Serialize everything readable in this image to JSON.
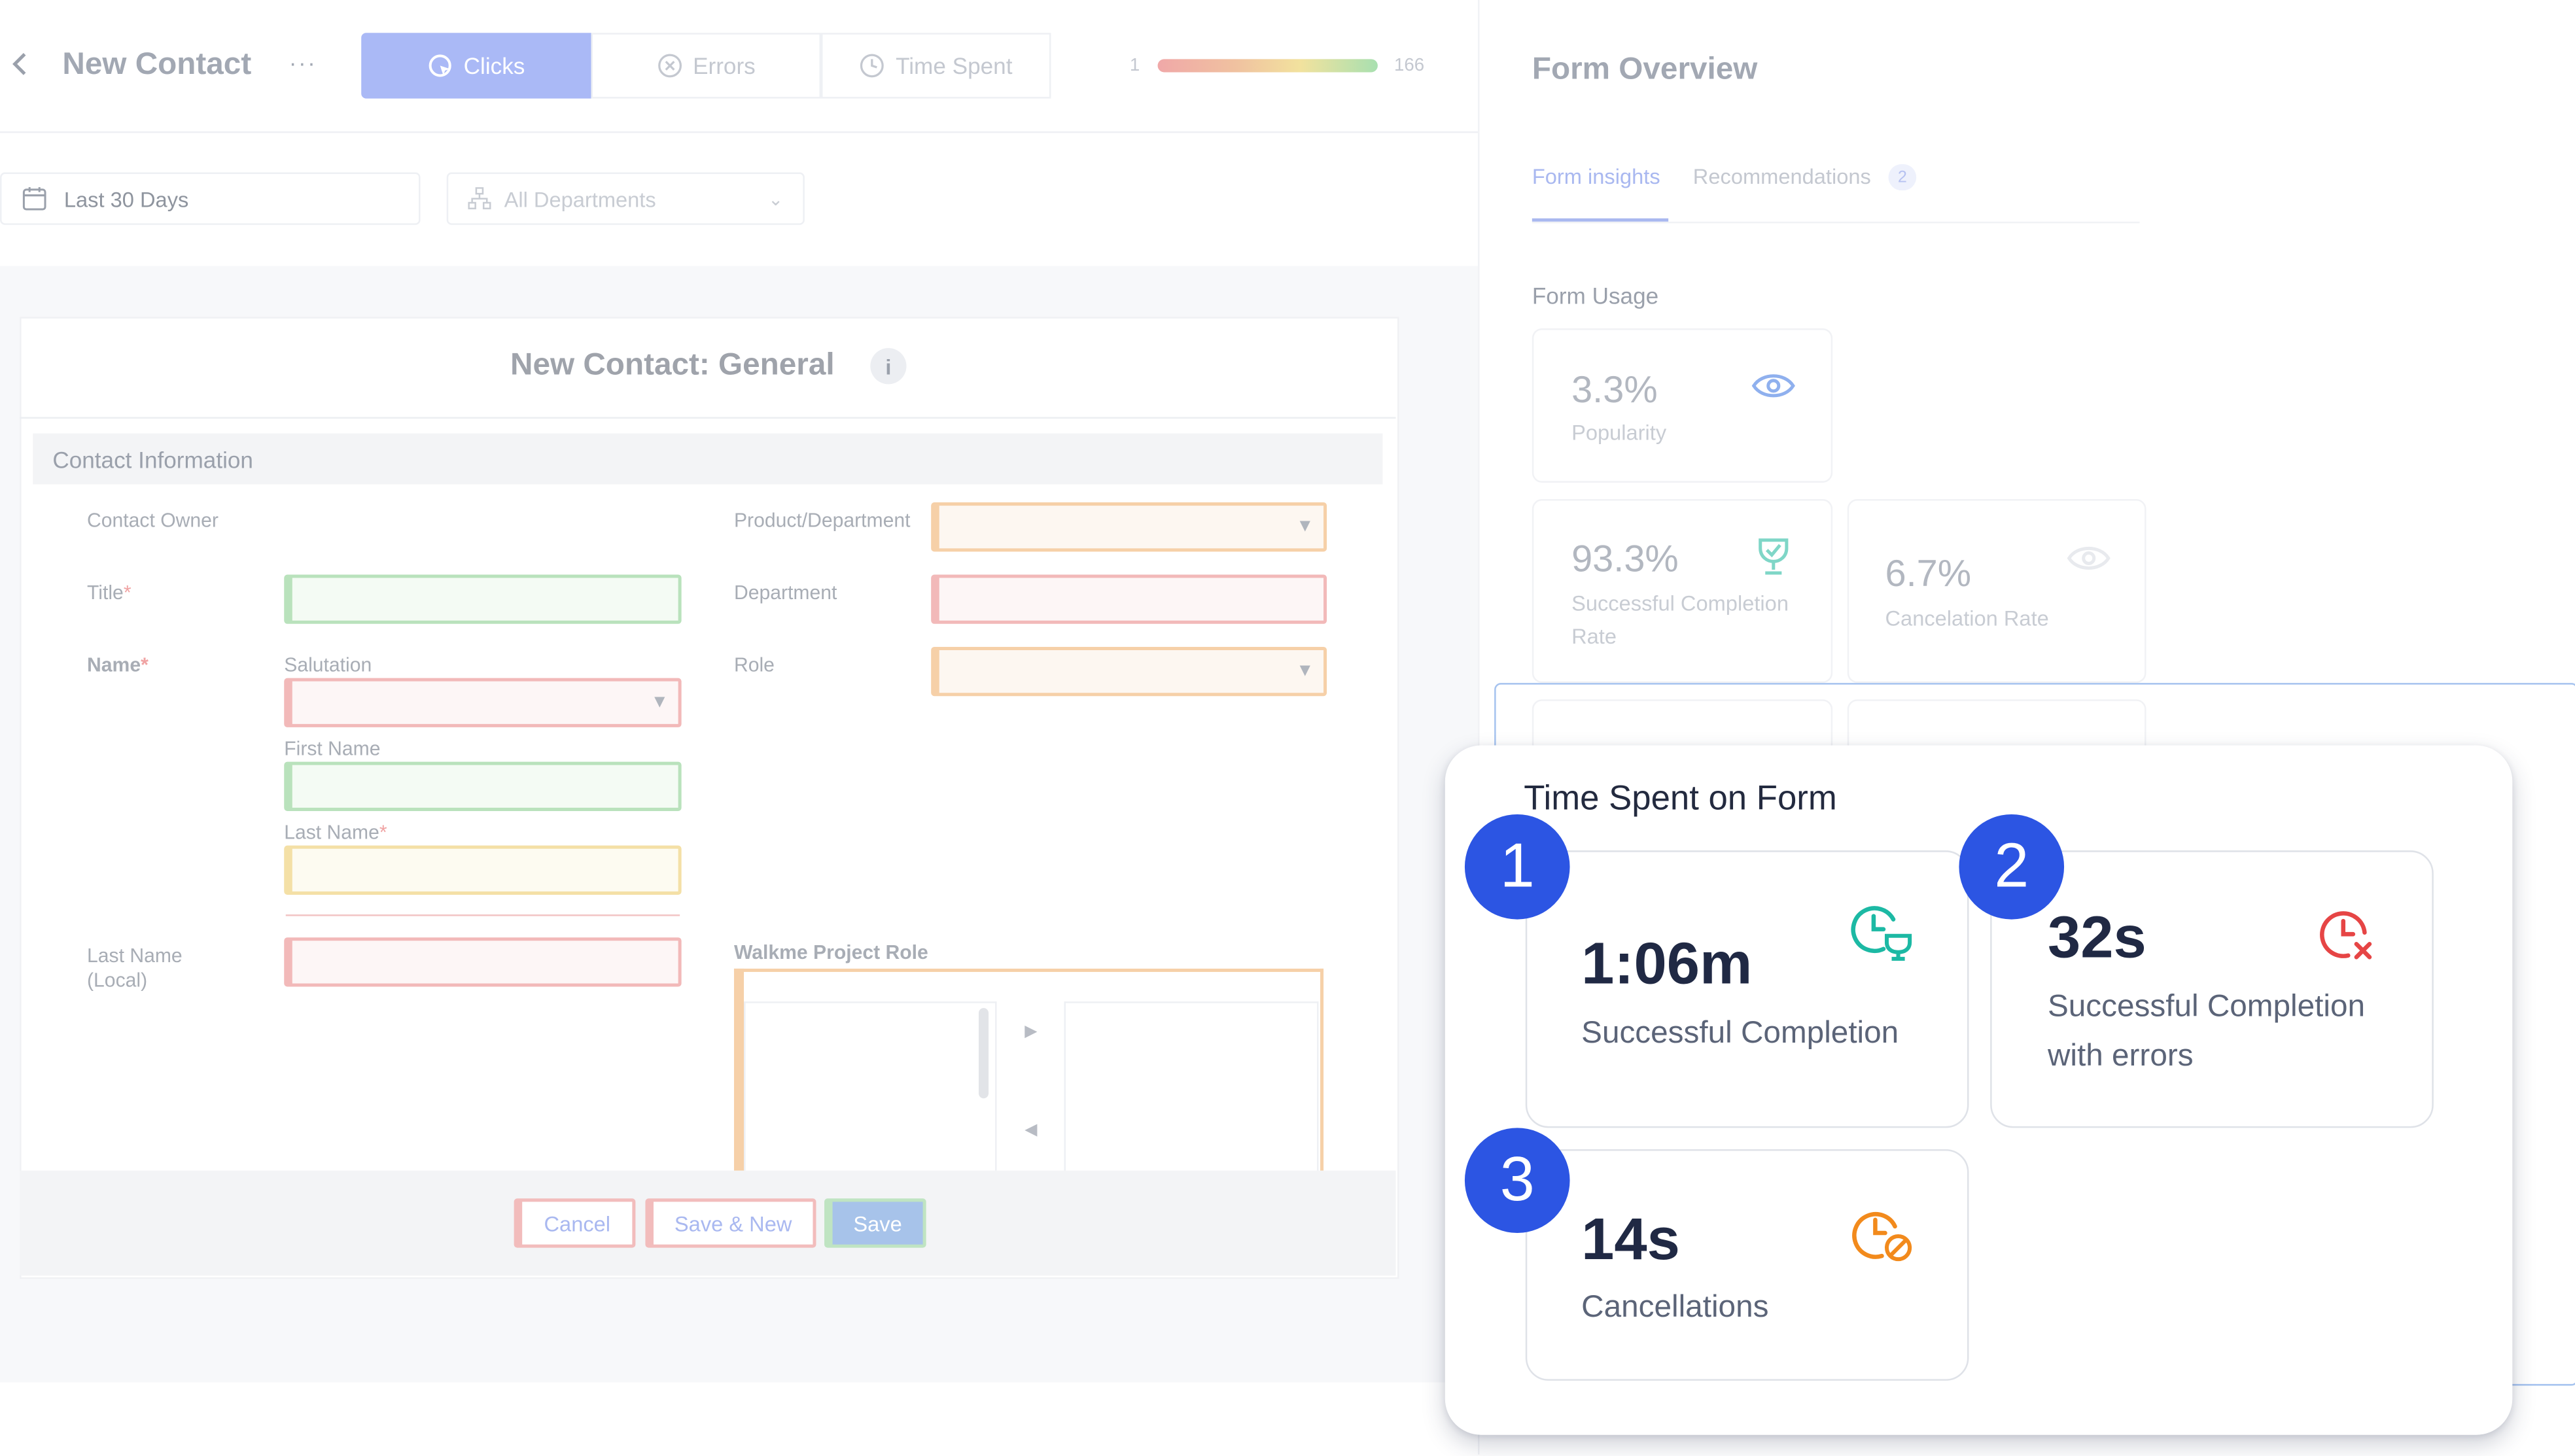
{
  "header": {
    "back_icon": "chevron-left-icon",
    "title": "New Contact",
    "more_label": "···",
    "tabs": [
      {
        "label": "Clicks",
        "icon": "cursor-click-icon",
        "active": true
      },
      {
        "label": "Errors",
        "icon": "x-circle-icon",
        "active": false
      },
      {
        "label": "Time Spent",
        "icon": "clock-icon",
        "active": false
      }
    ],
    "heatmap_scale": {
      "min": "1",
      "max": "166"
    }
  },
  "filters": {
    "date_range": "Last 30 Days",
    "departments": "All Departments"
  },
  "form": {
    "title": "New Contact: General",
    "info_icon": "i",
    "section": "Contact Information",
    "labels": {
      "contact_owner": "Contact Owner",
      "title": "Title",
      "name": "Name",
      "salutation": "Salutation",
      "first_name": "First Name",
      "last_name": "Last Name",
      "last_name_local": "Last Name (Local)",
      "product_department": "Product/Department",
      "department": "Department",
      "role": "Role",
      "walkme_project_role": "Walkme Project Role"
    },
    "required_mark": "*",
    "buttons": {
      "cancel": "Cancel",
      "save_new": "Save & New",
      "save": "Save"
    }
  },
  "overview": {
    "title": "Form Overview",
    "tabs": [
      {
        "label": "Form insights",
        "active": true
      },
      {
        "label": "Recommendations",
        "badge": "2"
      }
    ],
    "usage_heading": "Form Usage",
    "stats": [
      {
        "value": "3.3%",
        "label": "Popularity",
        "icon": "eye-icon"
      },
      {
        "value": "93.3%",
        "label": "Successful Completion Rate",
        "icon": "trophy-icon"
      },
      {
        "value": "6.7%",
        "label": "Cancelation Rate",
        "icon": "eye-off-icon"
      }
    ]
  },
  "time_spent": {
    "title": "Time Spent on Form",
    "cards": [
      {
        "number": "1",
        "value": "1:06m",
        "label": "Successful Completion",
        "icon": "clock-check-icon",
        "color": "#1cb9a4"
      },
      {
        "number": "2",
        "value": "32s",
        "label_line1": "Successful Completion",
        "label_line2": "with errors",
        "icon": "clock-error-icon",
        "color": "#e64545"
      },
      {
        "number": "3",
        "value": "14s",
        "label": "Cancellations",
        "icon": "clock-cancel-icon",
        "color": "#f28a1c"
      }
    ]
  },
  "colors": {
    "accent_blue": "#2c55e3",
    "tab_active": "#aab9f6"
  }
}
